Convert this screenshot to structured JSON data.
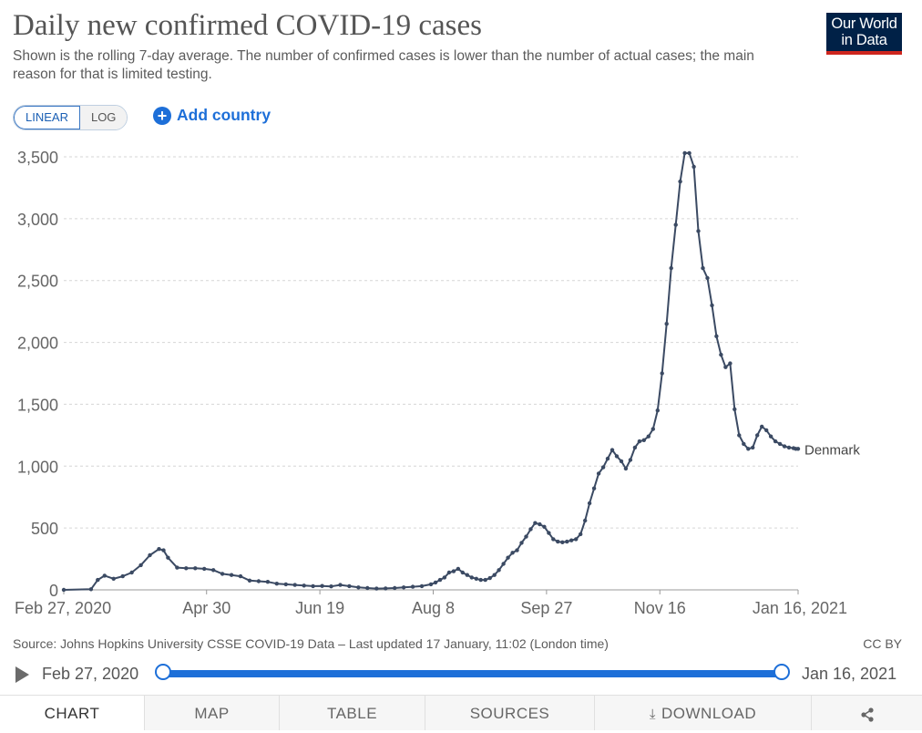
{
  "header": {
    "title": "Daily new confirmed COVID-19 cases",
    "subtitle": "Shown is the rolling 7-day average. The number of confirmed cases is lower than the number of actual cases; the main reason for that is limited testing.",
    "logo_line1": "Our World",
    "logo_line2": "in Data"
  },
  "controls": {
    "linear_label": "LINEAR",
    "log_label": "LOG",
    "add_country_label": "Add country",
    "selected_scale": "linear"
  },
  "chart_data": {
    "type": "line",
    "title": "Daily new confirmed COVID-19 cases",
    "xlabel": "",
    "ylabel": "",
    "ylim": [
      0,
      3500
    ],
    "yticks": [
      0,
      500,
      1000,
      1500,
      2000,
      2500,
      3000,
      3500
    ],
    "ytick_labels": [
      "0",
      "500",
      "1,000",
      "1,500",
      "2,000",
      "2,500",
      "3,000",
      "3,500"
    ],
    "xtick_labels": [
      "Feb 27, 2020",
      "Apr 30",
      "Jun 19",
      "Aug 8",
      "Sep 27",
      "Nov 16",
      "Jan 16, 2021"
    ],
    "xtick_days": [
      0,
      63,
      113,
      163,
      213,
      263,
      324
    ],
    "x_range_days": [
      0,
      324
    ],
    "grid": "horizontal dashed",
    "series": [
      {
        "name": "Denmark",
        "color": "#3b4a63",
        "x": [
          0,
          12,
          15,
          18,
          22,
          26,
          30,
          34,
          38,
          42,
          44,
          46,
          50,
          54,
          58,
          62,
          66,
          70,
          74,
          78,
          82,
          86,
          90,
          94,
          98,
          102,
          106,
          110,
          114,
          118,
          122,
          126,
          130,
          134,
          138,
          142,
          146,
          150,
          154,
          158,
          162,
          164,
          166,
          168,
          170,
          172,
          174,
          176,
          178,
          180,
          182,
          184,
          186,
          188,
          190,
          192,
          194,
          196,
          198,
          200,
          202,
          204,
          206,
          208,
          210,
          212,
          214,
          216,
          218,
          220,
          222,
          224,
          226,
          228,
          230,
          232,
          234,
          236,
          238,
          240,
          242,
          244,
          246,
          248,
          250,
          252,
          254,
          256,
          258,
          260,
          262,
          264,
          266,
          268,
          270,
          272,
          274,
          276,
          278,
          280,
          282,
          284,
          286,
          288,
          290,
          292,
          294,
          296,
          298,
          300,
          302,
          304,
          306,
          308,
          310,
          312,
          314,
          316,
          318,
          320,
          322,
          323,
          324
        ],
        "y": [
          0,
          5,
          80,
          115,
          90,
          110,
          140,
          200,
          280,
          330,
          320,
          260,
          180,
          175,
          175,
          170,
          160,
          130,
          120,
          110,
          75,
          70,
          65,
          50,
          45,
          40,
          35,
          30,
          32,
          28,
          40,
          30,
          20,
          15,
          10,
          12,
          15,
          20,
          25,
          30,
          45,
          60,
          80,
          100,
          140,
          150,
          170,
          140,
          120,
          100,
          90,
          80,
          80,
          95,
          120,
          160,
          210,
          260,
          300,
          320,
          380,
          430,
          490,
          540,
          530,
          510,
          460,
          410,
          390,
          385,
          390,
          400,
          410,
          450,
          560,
          700,
          820,
          940,
          990,
          1060,
          1130,
          1080,
          1040,
          980,
          1050,
          1150,
          1200,
          1210,
          1240,
          1300,
          1450,
          1750,
          2150,
          2600,
          2950,
          3300,
          3530,
          3530,
          3420,
          2900,
          2600,
          2520,
          2300,
          2050,
          1900,
          1800,
          1830,
          1460,
          1250,
          1180,
          1140,
          1150,
          1250,
          1320,
          1290,
          1240,
          1200,
          1180,
          1160,
          1150,
          1145,
          1140,
          1140
        ],
        "end_label": "Denmark"
      }
    ]
  },
  "footer": {
    "source": "Source: Johns Hopkins University CSSE COVID-19 Data – Last updated 17 January, 11:02 (London time)",
    "license": "CC BY",
    "timeline_start": "Feb 27, 2020",
    "timeline_end": "Jan 16, 2021"
  },
  "tabs": {
    "chart": "CHART",
    "map": "MAP",
    "table": "TABLE",
    "sources": "SOURCES",
    "download": "DOWNLOAD",
    "active": "chart"
  }
}
